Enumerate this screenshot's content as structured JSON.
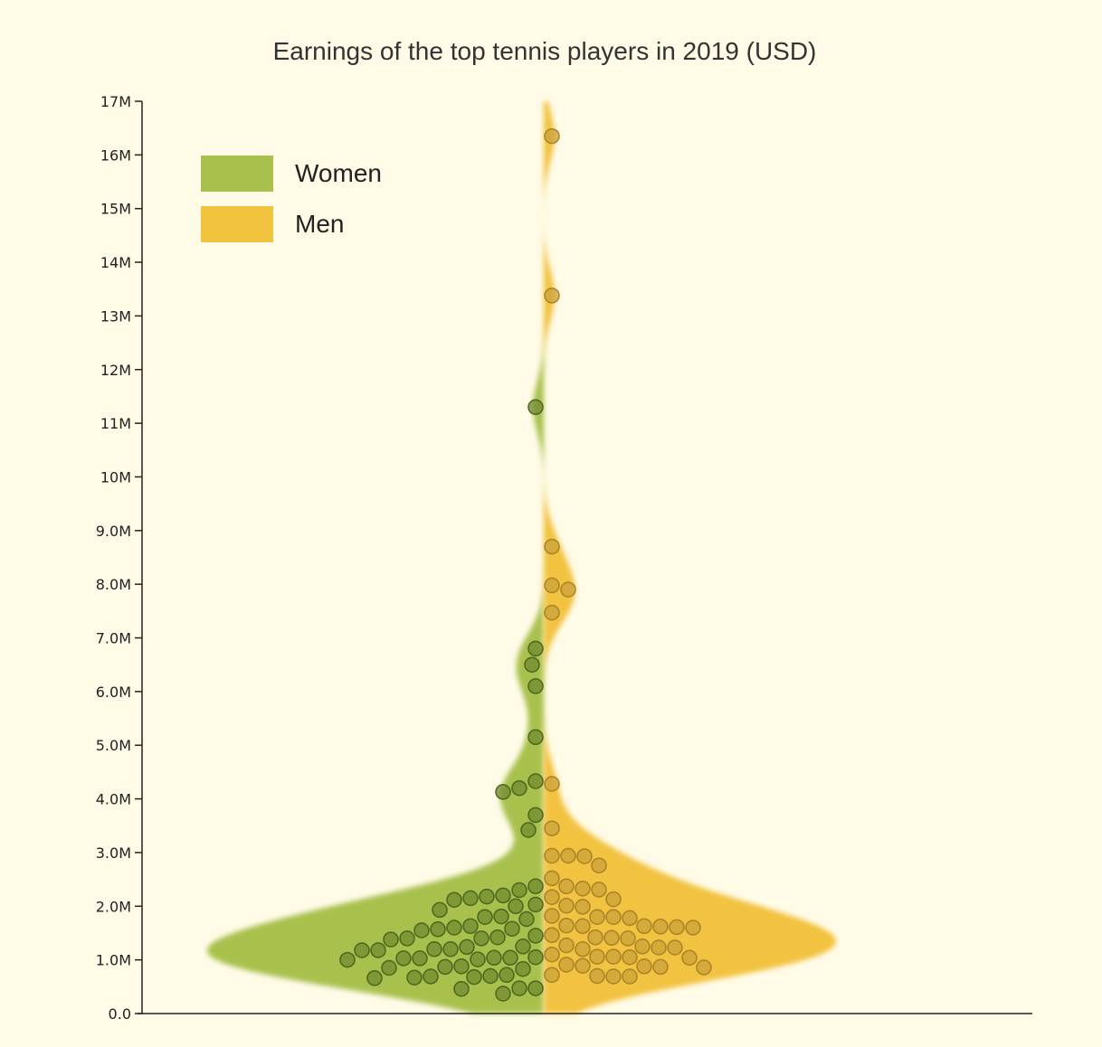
{
  "chart_data": {
    "type": "violin",
    "title": "Earnings of the top tennis players in 2019 (USD)",
    "ylim": [
      0,
      17000000
    ],
    "yticks": [
      {
        "value": 0,
        "label": "0.0"
      },
      {
        "value": 1000000,
        "label": "1.0M"
      },
      {
        "value": 2000000,
        "label": "2.0M"
      },
      {
        "value": 3000000,
        "label": "3.0M"
      },
      {
        "value": 4000000,
        "label": "4.0M"
      },
      {
        "value": 5000000,
        "label": "5.0M"
      },
      {
        "value": 6000000,
        "label": "6.0M"
      },
      {
        "value": 7000000,
        "label": "7.0M"
      },
      {
        "value": 8000000,
        "label": "8.0M"
      },
      {
        "value": 9000000,
        "label": "9.0M"
      },
      {
        "value": 10000000,
        "label": "10M"
      },
      {
        "value": 11000000,
        "label": "11M"
      },
      {
        "value": 12000000,
        "label": "12M"
      },
      {
        "value": 13000000,
        "label": "13M"
      },
      {
        "value": 14000000,
        "label": "14M"
      },
      {
        "value": 15000000,
        "label": "15M"
      },
      {
        "value": 16000000,
        "label": "16M"
      },
      {
        "value": 17000000,
        "label": "17M"
      }
    ],
    "legend_position": "top-left",
    "series": [
      {
        "name": "Women",
        "color": "#a8c14d",
        "side": "left",
        "values": [
          11300000,
          6800000,
          6500000,
          6100000,
          5150000,
          4330000,
          4200000,
          4130000,
          3700000,
          3420000,
          2370000,
          2300000,
          2200000,
          2180000,
          2150000,
          2120000,
          2030000,
          2000000,
          1930000,
          1810000,
          1800000,
          1760000,
          1630000,
          1600000,
          1580000,
          1570000,
          1550000,
          1450000,
          1420000,
          1400000,
          1400000,
          1380000,
          1250000,
          1240000,
          1200000,
          1200000,
          1180000,
          1180000,
          1050000,
          1040000,
          1040000,
          1030000,
          1030000,
          1010000,
          1000000,
          880000,
          870000,
          850000,
          830000,
          720000,
          700000,
          690000,
          680000,
          670000,
          660000,
          470000,
          470000,
          460000,
          370000
        ]
      },
      {
        "name": "Men",
        "color": "#f2c33f",
        "side": "right",
        "values": [
          16350000,
          13380000,
          8700000,
          7980000,
          7900000,
          7470000,
          4280000,
          3450000,
          2940000,
          2940000,
          2930000,
          2760000,
          2520000,
          2370000,
          2330000,
          2310000,
          2170000,
          2130000,
          2010000,
          1990000,
          1820000,
          1800000,
          1780000,
          1800000,
          1640000,
          1630000,
          1630000,
          1620000,
          1610000,
          1600000,
          1460000,
          1420000,
          1410000,
          1400000,
          1270000,
          1250000,
          1230000,
          1230000,
          1200000,
          1100000,
          1060000,
          1050000,
          1040000,
          1060000,
          910000,
          890000,
          880000,
          870000,
          860000,
          720000,
          700000,
          690000,
          690000
        ]
      }
    ]
  }
}
